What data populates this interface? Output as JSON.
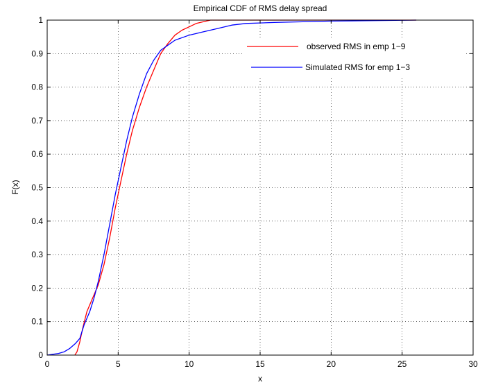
{
  "chart_data": {
    "type": "line",
    "title": "Empirical CDF of RMS delay spread",
    "xlabel": "x",
    "ylabel": "F(x)",
    "xlim": [
      0,
      30
    ],
    "ylim": [
      0,
      1
    ],
    "xticks": [
      0,
      5,
      10,
      15,
      20,
      25,
      30
    ],
    "yticks": [
      0,
      0.1,
      0.2,
      0.3,
      0.4,
      0.5,
      0.6,
      0.7,
      0.8,
      0.9,
      1
    ],
    "grid": true,
    "legend_position": "top-right",
    "series": [
      {
        "name": "observed RMS in emp 1−9",
        "color": "#ff0000",
        "points": [
          [
            1.95,
            0
          ],
          [
            2.1,
            0.01
          ],
          [
            2.3,
            0.04
          ],
          [
            2.5,
            0.08
          ],
          [
            2.8,
            0.13
          ],
          [
            3.2,
            0.17
          ],
          [
            3.6,
            0.21
          ],
          [
            4.0,
            0.27
          ],
          [
            4.4,
            0.35
          ],
          [
            4.8,
            0.44
          ],
          [
            5.2,
            0.52
          ],
          [
            5.6,
            0.6
          ],
          [
            6.0,
            0.67
          ],
          [
            6.5,
            0.74
          ],
          [
            7.0,
            0.8
          ],
          [
            7.5,
            0.85
          ],
          [
            8.0,
            0.9
          ],
          [
            8.5,
            0.93
          ],
          [
            9.0,
            0.955
          ],
          [
            9.5,
            0.97
          ],
          [
            10.0,
            0.98
          ],
          [
            10.5,
            0.99
          ],
          [
            11.0,
            0.995
          ],
          [
            11.5,
            1.0
          ],
          [
            26.0,
            1.0
          ]
        ]
      },
      {
        "name": "Simulated RMS  for emp 1−3",
        "color": "#0000ff",
        "points": [
          [
            0,
            0
          ],
          [
            0.8,
            0.005
          ],
          [
            1.2,
            0.01
          ],
          [
            1.6,
            0.02
          ],
          [
            2.0,
            0.035
          ],
          [
            2.3,
            0.05
          ],
          [
            2.6,
            0.09
          ],
          [
            3.0,
            0.13
          ],
          [
            3.3,
            0.17
          ],
          [
            3.6,
            0.22
          ],
          [
            4.0,
            0.3
          ],
          [
            4.4,
            0.39
          ],
          [
            4.8,
            0.48
          ],
          [
            5.2,
            0.56
          ],
          [
            5.6,
            0.64
          ],
          [
            6.0,
            0.71
          ],
          [
            6.5,
            0.78
          ],
          [
            7.0,
            0.84
          ],
          [
            7.5,
            0.88
          ],
          [
            8.0,
            0.91
          ],
          [
            8.5,
            0.925
          ],
          [
            9.0,
            0.94
          ],
          [
            10.0,
            0.955
          ],
          [
            11.0,
            0.965
          ],
          [
            12.0,
            0.975
          ],
          [
            13.0,
            0.985
          ],
          [
            14.0,
            0.99
          ],
          [
            16.0,
            0.993
          ],
          [
            18.0,
            0.995
          ],
          [
            20.0,
            0.997
          ],
          [
            22.0,
            0.998
          ],
          [
            24.0,
            0.999
          ],
          [
            26.0,
            1.0
          ]
        ]
      }
    ]
  }
}
